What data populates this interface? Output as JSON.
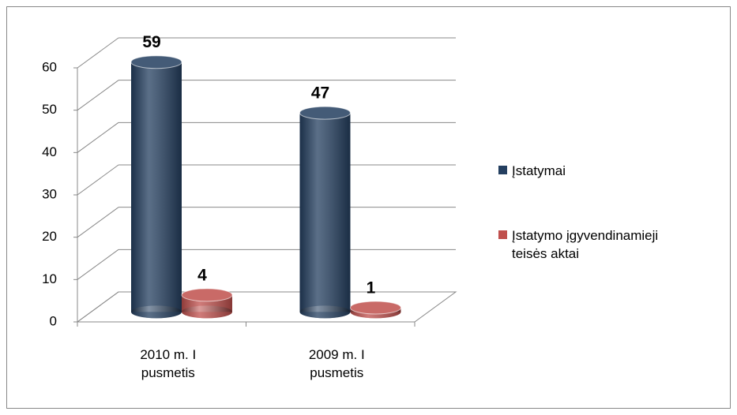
{
  "chart_data": {
    "type": "bar3d",
    "categories": [
      "2010 m. I pusmetis",
      "2009 m. I pusmetis"
    ],
    "series": [
      {
        "name": "Įstatymai",
        "color": "#243f60",
        "values": [
          59,
          47
        ]
      },
      {
        "name": "Įstatymo įgyvendinamieji teisės aktai",
        "color": "#c0504d",
        "values": [
          4,
          1
        ]
      }
    ],
    "ylim": [
      0,
      60
    ],
    "yticks": [
      0,
      10,
      20,
      30,
      40,
      50,
      60
    ],
    "grid": true,
    "legend": "right"
  }
}
